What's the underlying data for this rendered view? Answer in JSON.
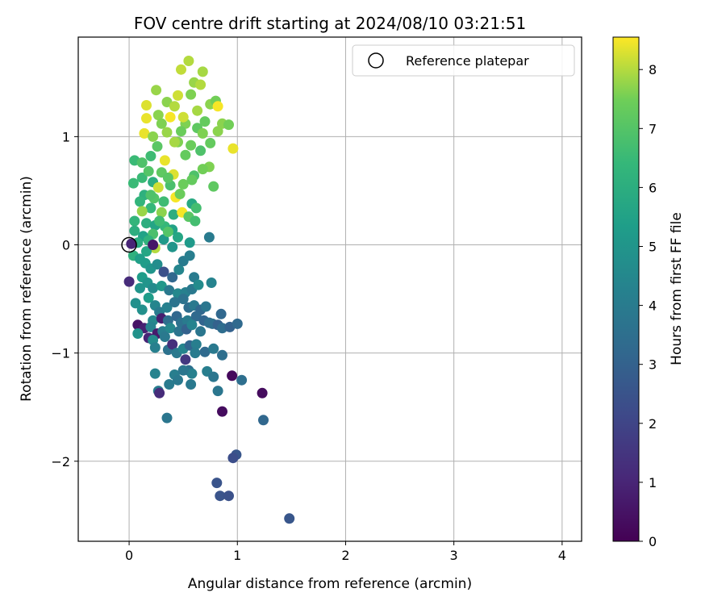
{
  "chart_data": {
    "type": "scatter",
    "title": "FOV centre drift starting at 2024/08/10 03:21:51",
    "xlabel": "Angular distance from reference (arcmin)",
    "ylabel": "Rotation from reference (arcmin)",
    "xlim": [
      -0.47,
      4.18
    ],
    "ylim": [
      -2.74,
      1.92
    ],
    "xticks": [
      0,
      1,
      2,
      3,
      4
    ],
    "xtick_labels": [
      "0",
      "1",
      "2",
      "3",
      "4"
    ],
    "yticks": [
      -2,
      -1,
      0,
      1
    ],
    "ytick_labels": [
      "−2",
      "−1",
      "0",
      "1"
    ],
    "grid": true,
    "legend": {
      "position": "top-right",
      "entries": [
        "Reference platepar"
      ]
    },
    "reference_point": {
      "name": "Reference platepar",
      "x": 0.0,
      "y": 0.0
    },
    "colorbar": {
      "label": "Hours from first FF file",
      "range": [
        0,
        8.55
      ],
      "ticks": [
        0,
        1,
        2,
        3,
        4,
        5,
        6,
        7,
        8
      ],
      "colormap": "viridis"
    },
    "points_encoding": "[x, y, hours]",
    "points": [
      [
        0.55,
        1.7,
        8.0
      ],
      [
        0.48,
        1.62,
        8.1
      ],
      [
        0.68,
        1.6,
        7.9
      ],
      [
        0.25,
        1.43,
        7.8
      ],
      [
        0.6,
        1.5,
        7.8
      ],
      [
        0.66,
        1.48,
        8.0
      ],
      [
        0.45,
        1.38,
        8.2
      ],
      [
        0.57,
        1.39,
        7.6
      ],
      [
        0.16,
        1.29,
        8.3
      ],
      [
        0.35,
        1.32,
        7.7
      ],
      [
        0.75,
        1.3,
        7.7
      ],
      [
        0.8,
        1.33,
        7.5
      ],
      [
        0.82,
        1.28,
        8.5
      ],
      [
        0.63,
        1.24,
        7.9
      ],
      [
        0.42,
        1.28,
        8.0
      ],
      [
        0.16,
        1.17,
        8.4
      ],
      [
        0.27,
        1.2,
        7.7
      ],
      [
        0.3,
        1.12,
        7.6
      ],
      [
        0.38,
        1.18,
        8.5
      ],
      [
        0.52,
        1.12,
        7.6
      ],
      [
        0.7,
        1.14,
        7.3
      ],
      [
        0.86,
        1.12,
        7.7
      ],
      [
        0.92,
        1.11,
        7.5
      ],
      [
        0.14,
        1.03,
        8.4
      ],
      [
        0.22,
        1.0,
        7.7
      ],
      [
        0.48,
        1.05,
        7.4
      ],
      [
        0.63,
        1.08,
        7.2
      ],
      [
        0.68,
        1.03,
        7.6
      ],
      [
        0.82,
        1.05,
        7.7
      ],
      [
        0.96,
        0.89,
        8.4
      ],
      [
        0.26,
        0.91,
        7.1
      ],
      [
        0.45,
        0.95,
        7.6
      ],
      [
        0.57,
        0.92,
        7.4
      ],
      [
        0.75,
        0.94,
        7.3
      ],
      [
        0.05,
        0.78,
        6.5
      ],
      [
        0.12,
        0.76,
        6.9
      ],
      [
        0.2,
        0.82,
        6.6
      ],
      [
        0.33,
        0.78,
        8.4
      ],
      [
        0.52,
        0.83,
        7.3
      ],
      [
        0.66,
        0.87,
        6.9
      ],
      [
        0.74,
        0.72,
        7.6
      ],
      [
        0.3,
        0.67,
        7.2
      ],
      [
        0.41,
        0.65,
        8.3
      ],
      [
        0.6,
        0.64,
        6.9
      ],
      [
        0.68,
        0.7,
        7.5
      ],
      [
        0.12,
        0.62,
        6.5
      ],
      [
        0.04,
        0.57,
        6.5
      ],
      [
        0.22,
        0.58,
        6.0
      ],
      [
        0.27,
        0.53,
        8.2
      ],
      [
        0.38,
        0.55,
        6.8
      ],
      [
        0.5,
        0.56,
        7.4
      ],
      [
        0.78,
        0.54,
        7.2
      ],
      [
        0.14,
        0.46,
        6.1
      ],
      [
        0.23,
        0.43,
        7.0
      ],
      [
        0.32,
        0.4,
        6.6
      ],
      [
        0.43,
        0.44,
        8.5
      ],
      [
        0.58,
        0.38,
        5.8
      ],
      [
        0.62,
        0.34,
        6.7
      ],
      [
        0.1,
        0.4,
        6.3
      ],
      [
        0.2,
        0.34,
        6.4
      ],
      [
        0.3,
        0.3,
        7.7
      ],
      [
        0.41,
        0.28,
        6.0
      ],
      [
        0.49,
        0.3,
        8.5
      ],
      [
        0.55,
        0.26,
        7.1
      ],
      [
        0.61,
        0.22,
        6.7
      ],
      [
        0.12,
        0.31,
        7.8
      ],
      [
        0.05,
        0.22,
        6.3
      ],
      [
        0.16,
        0.2,
        6.0
      ],
      [
        0.24,
        0.18,
        5.6
      ],
      [
        0.33,
        0.17,
        6.4
      ],
      [
        0.4,
        0.14,
        5.5
      ],
      [
        0.22,
        0.1,
        6.8
      ],
      [
        0.05,
        0.13,
        6.0
      ],
      [
        0.13,
        0.08,
        5.5
      ],
      [
        0.08,
        0.02,
        5.9
      ],
      [
        0.18,
        0.04,
        6.2
      ],
      [
        0.32,
        0.05,
        5.2
      ],
      [
        0.36,
        0.12,
        7.0
      ],
      [
        0.45,
        0.07,
        5.7
      ],
      [
        0.24,
        -0.03,
        8.0
      ],
      [
        0.4,
        -0.02,
        5.0
      ],
      [
        0.16,
        -0.06,
        5.7
      ],
      [
        0.04,
        -0.1,
        6.1
      ],
      [
        0.1,
        -0.13,
        5.4
      ],
      [
        0.56,
        0.02,
        5.2
      ],
      [
        0.74,
        0.07,
        4.0
      ],
      [
        0.02,
        0.01,
        1.0
      ],
      [
        0.22,
        0.0,
        0.6
      ],
      [
        0.15,
        -0.17,
        5.3
      ],
      [
        0.2,
        -0.22,
        5.0
      ],
      [
        0.26,
        -0.18,
        4.7
      ],
      [
        0.32,
        -0.25,
        2.4
      ],
      [
        0.4,
        -0.3,
        3.2
      ],
      [
        0.46,
        -0.23,
        4.4
      ],
      [
        0.5,
        -0.15,
        4.0
      ],
      [
        0.56,
        -0.1,
        4.1
      ],
      [
        0.6,
        -0.3,
        4.0
      ],
      [
        0.0,
        -0.34,
        1.2
      ],
      [
        0.12,
        -0.3,
        5.3
      ],
      [
        0.17,
        -0.35,
        5.0
      ],
      [
        0.22,
        -0.4,
        4.6
      ],
      [
        0.3,
        -0.38,
        5.1
      ],
      [
        0.37,
        -0.42,
        3.9
      ],
      [
        0.45,
        -0.45,
        4.5
      ],
      [
        0.52,
        -0.44,
        4.2
      ],
      [
        0.58,
        -0.41,
        3.9
      ],
      [
        0.64,
        -0.37,
        4.6
      ],
      [
        0.76,
        -0.35,
        4.3
      ],
      [
        0.1,
        -0.4,
        5.0
      ],
      [
        0.06,
        -0.54,
        4.8
      ],
      [
        0.18,
        -0.49,
        5.3
      ],
      [
        0.24,
        -0.56,
        4.4
      ],
      [
        0.28,
        -0.62,
        4.0
      ],
      [
        0.35,
        -0.58,
        4.2
      ],
      [
        0.42,
        -0.53,
        3.7
      ],
      [
        0.5,
        -0.5,
        3.6
      ],
      [
        0.55,
        -0.58,
        3.4
      ],
      [
        0.6,
        -0.56,
        3.9
      ],
      [
        0.66,
        -0.6,
        3.2
      ],
      [
        0.71,
        -0.57,
        3.8
      ],
      [
        0.12,
        -0.6,
        4.8
      ],
      [
        0.22,
        -0.7,
        4.5
      ],
      [
        0.3,
        -0.68,
        0.8
      ],
      [
        0.36,
        -0.7,
        3.5
      ],
      [
        0.44,
        -0.66,
        3.2
      ],
      [
        0.48,
        -0.72,
        3.6
      ],
      [
        0.54,
        -0.7,
        4.0
      ],
      [
        0.62,
        -0.66,
        3.3
      ],
      [
        0.69,
        -0.7,
        3.1
      ],
      [
        0.77,
        -0.73,
        3.4
      ],
      [
        0.85,
        -0.64,
        3.2
      ],
      [
        0.08,
        -0.74,
        0.5
      ],
      [
        0.14,
        -0.77,
        0.9
      ],
      [
        0.2,
        -0.76,
        4.3
      ],
      [
        0.26,
        -0.82,
        0.7
      ],
      [
        0.31,
        -0.8,
        4.1
      ],
      [
        0.38,
        -0.77,
        4.5
      ],
      [
        0.46,
        -0.8,
        3.7
      ],
      [
        0.53,
        -0.78,
        3.0
      ],
      [
        0.58,
        -0.74,
        4.3
      ],
      [
        0.66,
        -0.8,
        3.8
      ],
      [
        0.74,
        -0.72,
        3.5
      ],
      [
        0.82,
        -0.74,
        3.0
      ],
      [
        0.86,
        -0.77,
        3.4
      ],
      [
        0.93,
        -0.76,
        3.0
      ],
      [
        1.0,
        -0.73,
        3.3
      ],
      [
        0.08,
        -0.82,
        4.9
      ],
      [
        0.18,
        -0.86,
        1.0
      ],
      [
        0.22,
        -0.88,
        4.6
      ],
      [
        0.24,
        -0.95,
        4.2
      ],
      [
        0.33,
        -0.85,
        3.9
      ],
      [
        0.36,
        -0.97,
        3.6
      ],
      [
        0.4,
        -0.92,
        1.3
      ],
      [
        0.44,
        -1.0,
        3.9
      ],
      [
        0.5,
        -0.96,
        4.4
      ],
      [
        0.56,
        -0.93,
        3.1
      ],
      [
        0.62,
        -0.92,
        4.1
      ],
      [
        0.61,
        -1.0,
        4.0
      ],
      [
        0.7,
        -0.99,
        3.3
      ],
      [
        0.78,
        -0.96,
        3.9
      ],
      [
        0.86,
        -1.02,
        3.5
      ],
      [
        0.52,
        -1.06,
        1.6
      ],
      [
        0.24,
        -1.19,
        4.3
      ],
      [
        0.42,
        -1.2,
        4.1
      ],
      [
        0.45,
        -1.25,
        3.9
      ],
      [
        0.55,
        -1.16,
        3.5
      ],
      [
        0.58,
        -1.19,
        4.2
      ],
      [
        0.5,
        -1.16,
        3.8
      ],
      [
        0.37,
        -1.29,
        4.0
      ],
      [
        0.57,
        -1.29,
        3.9
      ],
      [
        0.72,
        -1.17,
        4.1
      ],
      [
        0.78,
        -1.22,
        3.8
      ],
      [
        0.95,
        -1.21,
        0.2
      ],
      [
        1.04,
        -1.25,
        3.5
      ],
      [
        0.27,
        -1.35,
        4.0
      ],
      [
        0.28,
        -1.37,
        1.2
      ],
      [
        0.82,
        -1.35,
        3.8
      ],
      [
        1.23,
        -1.37,
        0.3
      ],
      [
        0.86,
        -1.54,
        0.3
      ],
      [
        0.35,
        -1.6,
        3.8
      ],
      [
        1.24,
        -1.62,
        3.2
      ],
      [
        0.99,
        -1.94,
        2.6
      ],
      [
        0.96,
        -1.97,
        2.3
      ],
      [
        0.81,
        -2.2,
        2.5
      ],
      [
        0.84,
        -2.32,
        2.5
      ],
      [
        0.92,
        -2.32,
        2.4
      ],
      [
        1.48,
        -2.53,
        2.6
      ],
      [
        0.58,
        0.6,
        7.3
      ],
      [
        0.47,
        0.47,
        7.4
      ],
      [
        0.36,
        0.62,
        7.1
      ],
      [
        0.28,
        0.22,
        6.6
      ],
      [
        0.2,
        0.46,
        6.9
      ],
      [
        0.18,
        0.68,
        7.0
      ],
      [
        0.42,
        0.95,
        7.9
      ],
      [
        0.5,
        1.18,
        8.2
      ],
      [
        0.35,
        1.04,
        7.8
      ]
    ]
  }
}
